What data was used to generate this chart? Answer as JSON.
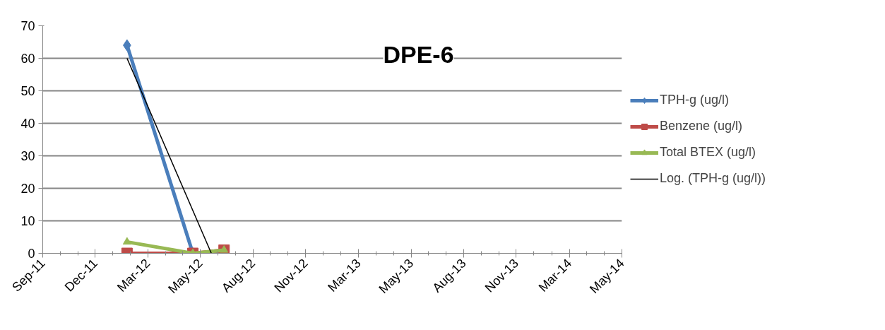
{
  "chart_data": {
    "type": "line",
    "title": "DPE-6",
    "xlim": [
      "2011-09-01",
      "2014-05-31"
    ],
    "xticks": [
      {
        "value": "2011-09-01",
        "label": "Sep-11"
      },
      {
        "value": "2011-12-01",
        "label": "Dec-11"
      },
      {
        "value": "2012-03-01",
        "label": "Mar-12"
      },
      {
        "value": "2012-05-31",
        "label": "May-12"
      },
      {
        "value": "2012-08-30",
        "label": "Aug-12"
      },
      {
        "value": "2012-11-29",
        "label": "Nov-12"
      },
      {
        "value": "2013-03-01",
        "label": "Mar-13"
      },
      {
        "value": "2013-05-31",
        "label": "May-13"
      },
      {
        "value": "2013-08-30",
        "label": "Aug-13"
      },
      {
        "value": "2013-11-29",
        "label": "Nov-13"
      },
      {
        "value": "2014-03-01",
        "label": "Mar-14"
      },
      {
        "value": "2014-05-31",
        "label": "May-14"
      }
    ],
    "ylim": [
      0,
      70
    ],
    "yticks": [
      0,
      10,
      20,
      30,
      40,
      50,
      60,
      70
    ],
    "grid": "y",
    "legend": "right",
    "series": [
      {
        "name": "TPH-g (ug/l)",
        "color": "#4a7ebb",
        "marker": "diamond",
        "x": [
          "2012-01-25",
          "2012-05-18",
          "2012-07-11"
        ],
        "values": [
          64,
          0,
          0
        ]
      },
      {
        "name": "Benzene (ug/l)",
        "color": "#be4b48",
        "marker": "square",
        "x": [
          "2012-01-25",
          "2012-05-18",
          "2012-07-11"
        ],
        "values": [
          0,
          0,
          1
        ]
      },
      {
        "name": "Total BTEX (ug/l)",
        "color": "#98b954",
        "marker": "triangle",
        "x": [
          "2012-01-25",
          "2012-05-18",
          "2012-07-11"
        ],
        "values": [
          3.5,
          0,
          1
        ]
      },
      {
        "name": "Log. (TPH-g (ug/l))",
        "color": "#000000",
        "marker": "none",
        "x": [
          "2012-01-25",
          "2012-06-19"
        ],
        "values": [
          60,
          0
        ]
      }
    ]
  }
}
